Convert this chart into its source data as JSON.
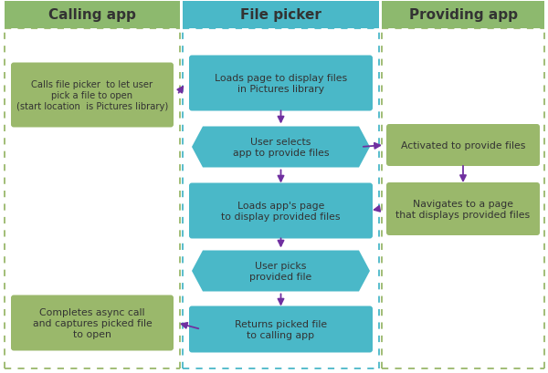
{
  "title_calling": "Calling app",
  "title_picker": "File picker",
  "title_providing": "Providing app",
  "header_bg_calling": "#8db96e",
  "header_bg_picker": "#4ab8c8",
  "header_bg_providing": "#8db96e",
  "header_text_color": "#000000",
  "box_bg_green": "#9ab86b",
  "box_bg_teal": "#4ab8c8",
  "arrow_color": "#7030a0",
  "dashed_green": "#9ab86b",
  "dashed_teal": "#4ab8c8",
  "bg_color": "#ffffff",
  "text_color_dark": "#333333",
  "figsize": [
    6.0,
    4.1
  ],
  "dpi": 100
}
